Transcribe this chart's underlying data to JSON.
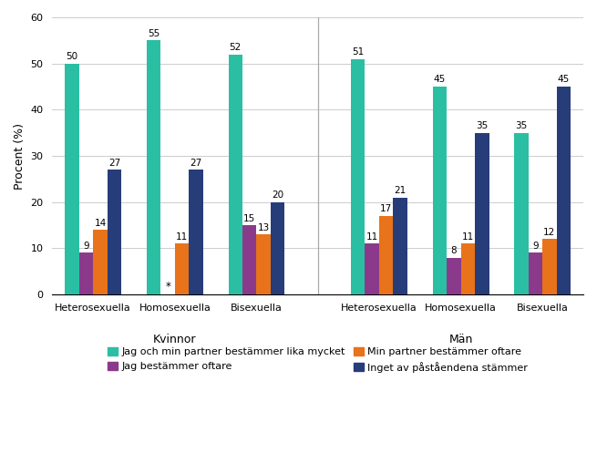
{
  "groups": [
    "Heterosexuella",
    "Homosexuella",
    "Bisexuella",
    "Heterosexuella",
    "Homosexuella",
    "Bisexuella"
  ],
  "group_labels_x": [
    "Heterosexuella",
    "Homosexuella",
    "Bisexuella",
    "Heterosexuella",
    "Homosexuella",
    "Bisexuella"
  ],
  "series_order": [
    "Jag och min partner bestämmer lika mycket",
    "Jag bestämmer oftare",
    "Min partner bestämmer oftare",
    "Inget av påståendena stämmer"
  ],
  "series": {
    "Jag och min partner bestämmer lika mycket": [
      50,
      55,
      52,
      51,
      45,
      35
    ],
    "Jag bestämmer oftare": [
      9,
      null,
      15,
      11,
      8,
      9
    ],
    "Min partner bestämmer oftare": [
      14,
      11,
      13,
      17,
      11,
      12
    ],
    "Inget av påståendena stämmer": [
      27,
      27,
      20,
      21,
      35,
      45
    ]
  },
  "bar_annotations": {
    "Jag och min partner bestämmer lika mycket": [
      50,
      55,
      52,
      51,
      45,
      35
    ],
    "Jag bestämmer oftare": [
      "9",
      "*",
      "15",
      "11",
      "8",
      "9"
    ],
    "Min partner bestämmer oftare": [
      "14",
      "11",
      "13",
      "17",
      "11",
      "12"
    ],
    "Inget av påståendena stämmer": [
      "27",
      "27",
      "20",
      "21",
      "35",
      "45"
    ]
  },
  "colors": {
    "Jag och min partner bestämmer lika mycket": "#2ABFA3",
    "Jag bestämmer oftare": "#8B3A8B",
    "Min partner bestämmer oftare": "#E8731A",
    "Inget av påståendena stämmer": "#263D7A"
  },
  "legend_order": [
    "Jag och min partner bestämmer lika mycket",
    "Jag bestämmer oftare",
    "Min partner bestämmer oftare",
    "Inget av påståendena stämmer"
  ],
  "ylim": [
    0,
    60
  ],
  "yticks": [
    0,
    10,
    20,
    30,
    40,
    50,
    60
  ],
  "ylabel": "Procent (%)",
  "bar_width": 0.19,
  "figsize": [
    6.55,
    4.97
  ],
  "dpi": 100,
  "background_color": "#FFFFFF",
  "grid_color": "#CCCCCC",
  "font_size_ticks": 8,
  "font_size_labels": 8,
  "font_size_annotations": 7.5,
  "font_size_legend": 8,
  "font_size_ylabel": 9,
  "font_size_gender": 9
}
